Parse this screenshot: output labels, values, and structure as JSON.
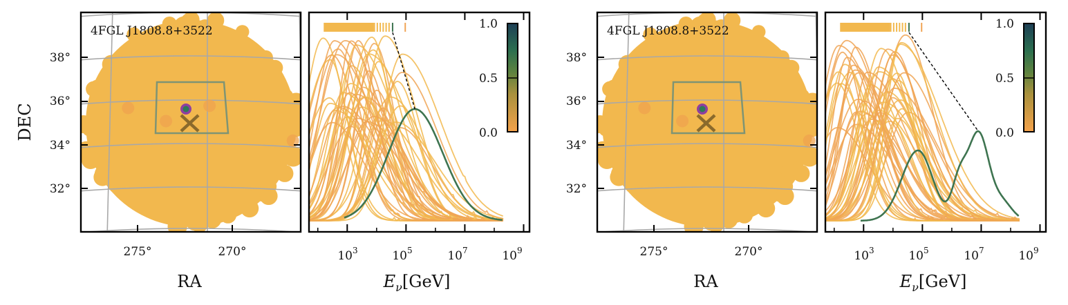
{
  "colors": {
    "source_fill": "#F2B84E",
    "source_bright": "#EFA34F",
    "curve_low": "#F0A455",
    "curve_best": "#3E7450",
    "roi_box": "#7E9474",
    "marker_purple": "#8E3FA0",
    "marker_green": "#2F7A58",
    "cross": "#8A6A2C",
    "grid": "#A8A8A8",
    "cmap": [
      "#F4A24B",
      "#8C8B3A",
      "#2C6F4F",
      "#1D3F56"
    ]
  },
  "chart_data": [
    {
      "type": "scatter",
      "panel": "sky-map-1",
      "source_label": "4FGL J1808.8+3522",
      "xlabel": "RA",
      "ylabel": "DEC",
      "x_ticks": [
        "275°",
        "270°"
      ],
      "y_ticks": [
        "38°",
        "36°",
        "34°",
        "32°"
      ],
      "roi_box": {
        "ra_range": [
          268.5,
          275.0
        ],
        "dec_range": [
          34.6,
          36.8
        ]
      },
      "best_match": {
        "ra": 272.5,
        "dec": 35.5
      },
      "source_position": {
        "ra": 272.2,
        "dec": 34.95
      },
      "bright_points": [
        {
          "ra": 275.5,
          "dec": 35.7
        },
        {
          "ra": 273.5,
          "dec": 35.1
        },
        {
          "ra": 271.2,
          "dec": 35.8
        },
        {
          "ra": 266.8,
          "dec": 34.2
        }
      ],
      "grid": true
    },
    {
      "type": "line",
      "panel": "energy-1",
      "xlabel": "E_ν[GeV]",
      "x_ticks": [
        "10",
        "10",
        "10",
        "10"
      ],
      "x_tick_exponents": [
        "3",
        "5",
        "7",
        "9"
      ],
      "xlim_log10": [
        1.7,
        9.2
      ],
      "best_curve": {
        "peak_log10E": 5.3,
        "width_left": 0.9,
        "width_right": 0.95,
        "height": 0.54,
        "range_log10E": [
          2.9,
          8.3
        ]
      },
      "candidate_curves": {
        "count": 48,
        "peak_range_log10E": [
          2.1,
          4.9
        ]
      },
      "rug_strip": {
        "range_log10E": [
          2.2,
          3.9
        ],
        "best_log10E": 4.52,
        "extra_log10E": 4.95
      },
      "colorbar": {
        "ticks": [
          "1.0",
          "0.5",
          "0.0"
        ],
        "range": [
          0,
          1
        ]
      }
    },
    {
      "type": "scatter",
      "panel": "sky-map-2",
      "source_label": "4FGL J1808.8+3522",
      "xlabel": "RA",
      "x_ticks": [
        "275°",
        "270°"
      ],
      "y_ticks": [
        "38°",
        "36°",
        "34°",
        "32°"
      ],
      "roi_box": {
        "ra_range": [
          268.5,
          275.0
        ],
        "dec_range": [
          34.6,
          36.8
        ]
      },
      "best_match": {
        "ra": 272.5,
        "dec": 35.5
      },
      "source_position": {
        "ra": 272.2,
        "dec": 34.95
      },
      "bright_points": [
        {
          "ra": 275.5,
          "dec": 35.7
        },
        {
          "ra": 273.5,
          "dec": 35.1
        },
        {
          "ra": 266.8,
          "dec": 34.2
        }
      ],
      "grid": true
    },
    {
      "type": "line",
      "panel": "energy-2",
      "xlabel": "E_ν[GeV]",
      "x_ticks": [
        "10",
        "10",
        "10",
        "10"
      ],
      "x_tick_exponents": [
        "3",
        "5",
        "7",
        "9"
      ],
      "xlim_log10": [
        1.7,
        9.2
      ],
      "best_curve": {
        "components": [
          {
            "log10E": 4.85,
            "width_left": 0.55,
            "width_right": 0.5,
            "height": 0.34
          },
          {
            "log10E": 6.25,
            "width_left": 0.25,
            "width_right": 0.25,
            "height": 0.18
          },
          {
            "log10E": 6.9,
            "width_left": 0.35,
            "width_right": 0.35,
            "height": 0.42
          },
          {
            "log10E": 7.7,
            "width_left": 0.35,
            "width_right": 0.35,
            "height": 0.09
          }
        ],
        "range_log10E": [
          2.9,
          8.3
        ]
      },
      "candidate_curves": {
        "count": 48,
        "peak_range_log10E": [
          2.1,
          4.6
        ]
      },
      "rug_strip": {
        "range_log10E": [
          2.2,
          3.9
        ],
        "best_log10E": 4.52,
        "extra_log10E": 4.95
      },
      "colorbar": {
        "ticks": [
          "1.0",
          "0.5",
          "0.0"
        ],
        "range": [
          0,
          1
        ]
      }
    }
  ]
}
